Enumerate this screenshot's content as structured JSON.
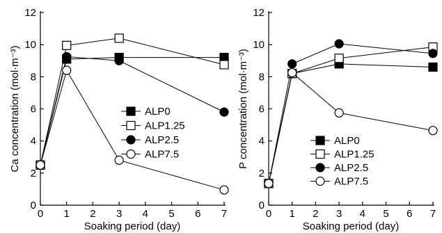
{
  "chart_data": [
    {
      "type": "line",
      "xlabel": "Soaking period (day)",
      "ylabel": "Ca concentration (mol·m⁻³)",
      "xlim": [
        0,
        7
      ],
      "ylim": [
        0,
        12
      ],
      "x_ticks": [
        0,
        1,
        2,
        3,
        4,
        5,
        6,
        7
      ],
      "y_ticks": [
        0,
        2,
        4,
        6,
        8,
        10,
        12
      ],
      "x": [
        0,
        1,
        3,
        7
      ],
      "legend_position": "center-right",
      "grid": false,
      "series": [
        {
          "name": "ALP0",
          "marker": "square",
          "filled": true,
          "values": [
            2.5,
            9.1,
            9.2,
            9.2
          ]
        },
        {
          "name": "ALP1.25",
          "marker": "square",
          "filled": false,
          "values": [
            2.5,
            9.95,
            10.4,
            8.75
          ]
        },
        {
          "name": "ALP2.5",
          "marker": "circle",
          "filled": true,
          "values": [
            2.5,
            9.25,
            9.0,
            5.8
          ]
        },
        {
          "name": "ALP7.5",
          "marker": "circle",
          "filled": false,
          "values": [
            2.5,
            8.4,
            2.8,
            0.95
          ]
        }
      ]
    },
    {
      "type": "line",
      "xlabel": "Soaking period (day)",
      "ylabel": "P concentration (mol·m⁻³)",
      "xlim": [
        0,
        7
      ],
      "ylim": [
        0,
        12
      ],
      "x_ticks": [
        0,
        1,
        2,
        3,
        4,
        5,
        6,
        7
      ],
      "y_ticks": [
        0,
        2,
        4,
        6,
        8,
        10,
        12
      ],
      "x": [
        0,
        1,
        3,
        7
      ],
      "legend_position": "bottom-center",
      "grid": false,
      "series": [
        {
          "name": "ALP0",
          "marker": "square",
          "filled": true,
          "values": [
            1.35,
            8.2,
            8.8,
            8.6
          ]
        },
        {
          "name": "ALP1.25",
          "marker": "square",
          "filled": false,
          "values": [
            1.35,
            8.2,
            9.15,
            9.85
          ]
        },
        {
          "name": "ALP2.5",
          "marker": "circle",
          "filled": true,
          "values": [
            1.35,
            8.8,
            10.05,
            9.45
          ]
        },
        {
          "name": "ALP7.5",
          "marker": "circle",
          "filled": false,
          "values": [
            1.35,
            8.25,
            5.75,
            4.65
          ]
        }
      ]
    }
  ]
}
